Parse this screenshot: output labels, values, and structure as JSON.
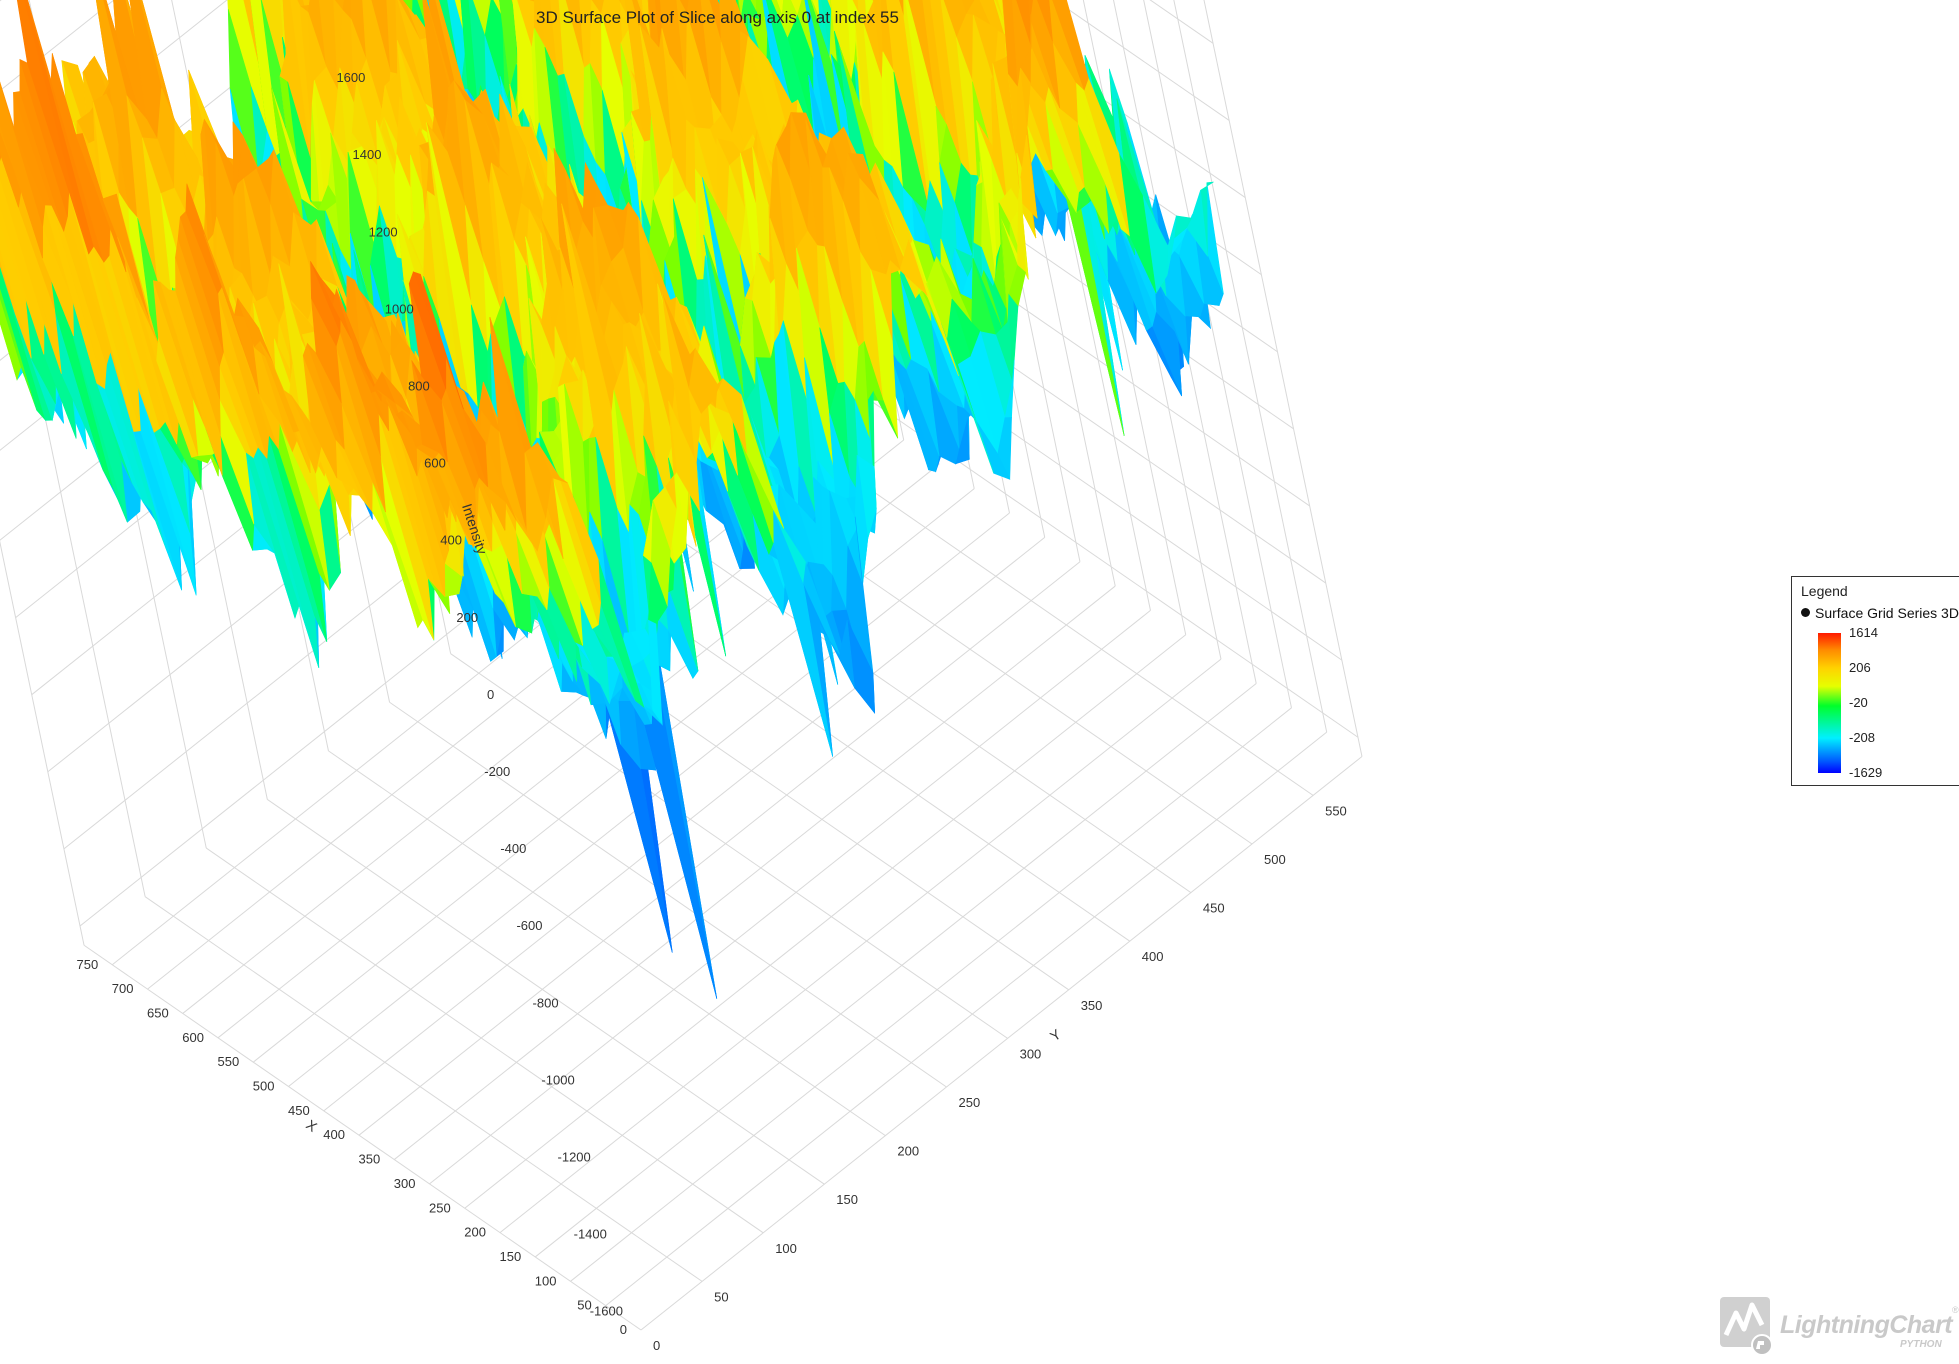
{
  "chart_data": {
    "type": "surface",
    "title": "3D Surface Plot of Slice along axis 0 at index 55",
    "axes": {
      "x": {
        "label": "X",
        "ticks": [
          "0",
          "50",
          "100",
          "150",
          "200",
          "250",
          "300",
          "350",
          "400",
          "450",
          "500",
          "550",
          "600",
          "650",
          "700",
          "750"
        ],
        "range": [
          0,
          790
        ]
      },
      "y": {
        "label": "Y",
        "ticks": [
          "0",
          "50",
          "100",
          "150",
          "200",
          "250",
          "300",
          "350",
          "400",
          "450",
          "500",
          "550"
        ],
        "range": [
          0,
          590
        ]
      },
      "z": {
        "label": "Intensity",
        "ticks": [
          "1600",
          "1400",
          "1200",
          "1000",
          "800",
          "600",
          "400",
          "200",
          "0",
          "-200",
          "-400",
          "-600",
          "-800",
          "-1000",
          "-1200",
          "-1400",
          "-1600"
        ],
        "range": [
          -1629,
          1614
        ]
      }
    },
    "series": [
      {
        "name": "Surface Grid Series 3D"
      }
    ],
    "color_scale": {
      "max": 1614,
      "min": -1629,
      "ticks": [
        "1614",
        "206",
        "-20",
        "-208",
        "-1629"
      ]
    },
    "grid": true,
    "legend_position": "right"
  },
  "legend": {
    "title": "Legend",
    "entry": "Surface Grid Series 3D",
    "ticks": [
      "1614",
      "206",
      "-20",
      "-208",
      "-1629"
    ]
  },
  "logo": {
    "text": "LightningChart",
    "sub": "PYTHON",
    "reg": "®"
  },
  "colors": {
    "max": "#ff1a00",
    "high": "#ff9800",
    "mid_high": "#ffd200",
    "mid": "#e6ff00",
    "low_mid": "#00ff2a",
    "low": "#00e6ff",
    "min": "#0000ff",
    "grid": "#d9d9d9"
  }
}
